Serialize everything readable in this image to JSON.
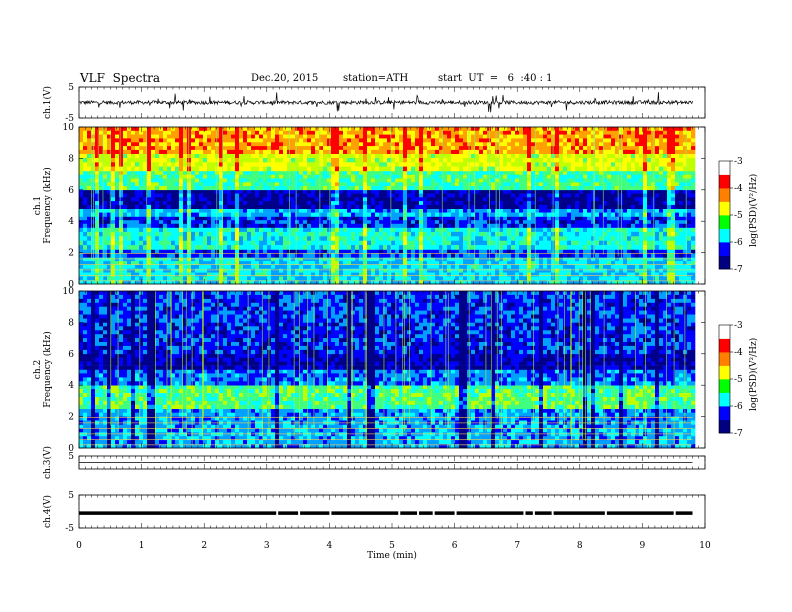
{
  "header": {
    "title": "VLF  Spectra",
    "date": "Dec.20, 2015",
    "station": "station=ATH",
    "start": "start  UT  =   6  :40 : 1"
  },
  "colors": {
    "spectrogram": [
      "#000088",
      "#0000ff",
      "#00a0ff",
      "#00ffff",
      "#40ff80",
      "#c0ff00",
      "#ffff00",
      "#ffa000",
      "#ff0000"
    ],
    "colorbar": [
      "#000080",
      "#0000ff",
      "#00ffff",
      "#00ff00",
      "#ffff00",
      "#ff8000",
      "#ff0000",
      "#ffffff"
    ]
  },
  "chart_data": [
    {
      "type": "line",
      "name": "ch.1 waveform",
      "ylabel": "ch.1(V)",
      "ylim": [
        -5,
        5
      ],
      "yticks": [
        "5",
        "-5"
      ],
      "x_range_min": [
        0,
        9.8
      ],
      "approx_amplitude_V": 1.0
    },
    {
      "type": "heatmap",
      "name": "ch.1 spectrogram",
      "ylabel": [
        "ch.1",
        "Frequency  (kHz)"
      ],
      "ylim": [
        0,
        10
      ],
      "yticks": [
        "0",
        "2",
        "4",
        "6",
        "8",
        "10"
      ],
      "x_range_min": [
        0,
        9.8
      ],
      "colorbar": {
        "label": "log(PSD)(V²/Hz)",
        "ticks": [
          "-3",
          "-4",
          "-5",
          "-6",
          "-7"
        ],
        "range": [
          -7,
          -3
        ]
      },
      "bands_kHz": [
        {
          "from": 0,
          "to": 1.7,
          "level": -5.6
        },
        {
          "from": 1.7,
          "to": 2.2,
          "level": -6.2
        },
        {
          "from": 2.2,
          "to": 3.6,
          "level": -5.4
        },
        {
          "from": 3.6,
          "to": 4.3,
          "level": -6.3
        },
        {
          "from": 4.3,
          "to": 4.8,
          "level": -5.8
        },
        {
          "from": 4.8,
          "to": 6.0,
          "level": -6.7
        },
        {
          "from": 6.0,
          "to": 7.2,
          "level": -5.1
        },
        {
          "from": 7.2,
          "to": 8.3,
          "level": -4.4
        },
        {
          "from": 8.3,
          "to": 10.0,
          "level": -3.7
        }
      ]
    },
    {
      "type": "heatmap",
      "name": "ch.2 spectrogram",
      "ylabel": [
        "ch.2",
        "Frequency  (kHz)"
      ],
      "ylim": [
        0,
        10
      ],
      "yticks": [
        "0",
        "2",
        "4",
        "6",
        "8",
        "10"
      ],
      "x_range_min": [
        0,
        9.8
      ],
      "colorbar": {
        "label": "log(PSD)(V²/Hz)",
        "ticks": [
          "-3",
          "-4",
          "-5",
          "-6",
          "-7"
        ],
        "range": [
          -7,
          -3
        ]
      },
      "bands_kHz": [
        {
          "from": 0,
          "to": 1.5,
          "level": -5.8
        },
        {
          "from": 1.5,
          "to": 2.5,
          "level": -5.9
        },
        {
          "from": 2.5,
          "to": 4.0,
          "level": -5.0
        },
        {
          "from": 4.0,
          "to": 5.0,
          "level": -6.0
        },
        {
          "from": 5.0,
          "to": 6.0,
          "level": -6.6
        },
        {
          "from": 6.0,
          "to": 8.0,
          "level": -6.3
        },
        {
          "from": 8.0,
          "to": 10.0,
          "level": -6.2
        }
      ]
    },
    {
      "type": "line",
      "name": "ch.3 waveform",
      "ylabel": "ch.3(V)",
      "ylim": [
        -5,
        5
      ],
      "yticks": [
        "5"
      ],
      "x_range_min": [
        0,
        9.8
      ],
      "approx_amplitude_V": 0.0
    },
    {
      "type": "line",
      "name": "ch.4 waveform",
      "ylabel": "ch.4(V)",
      "ylim": [
        -5,
        5
      ],
      "yticks": [
        "5",
        "-5"
      ],
      "x_range_min": [
        0,
        9.8
      ],
      "approx_level_V": -0.5
    }
  ],
  "time_axis": {
    "label": "Time  (min)",
    "ticks": [
      "0",
      "1",
      "2",
      "3",
      "4",
      "5",
      "6",
      "7",
      "8",
      "9",
      "10"
    ],
    "range": [
      0,
      10
    ]
  }
}
